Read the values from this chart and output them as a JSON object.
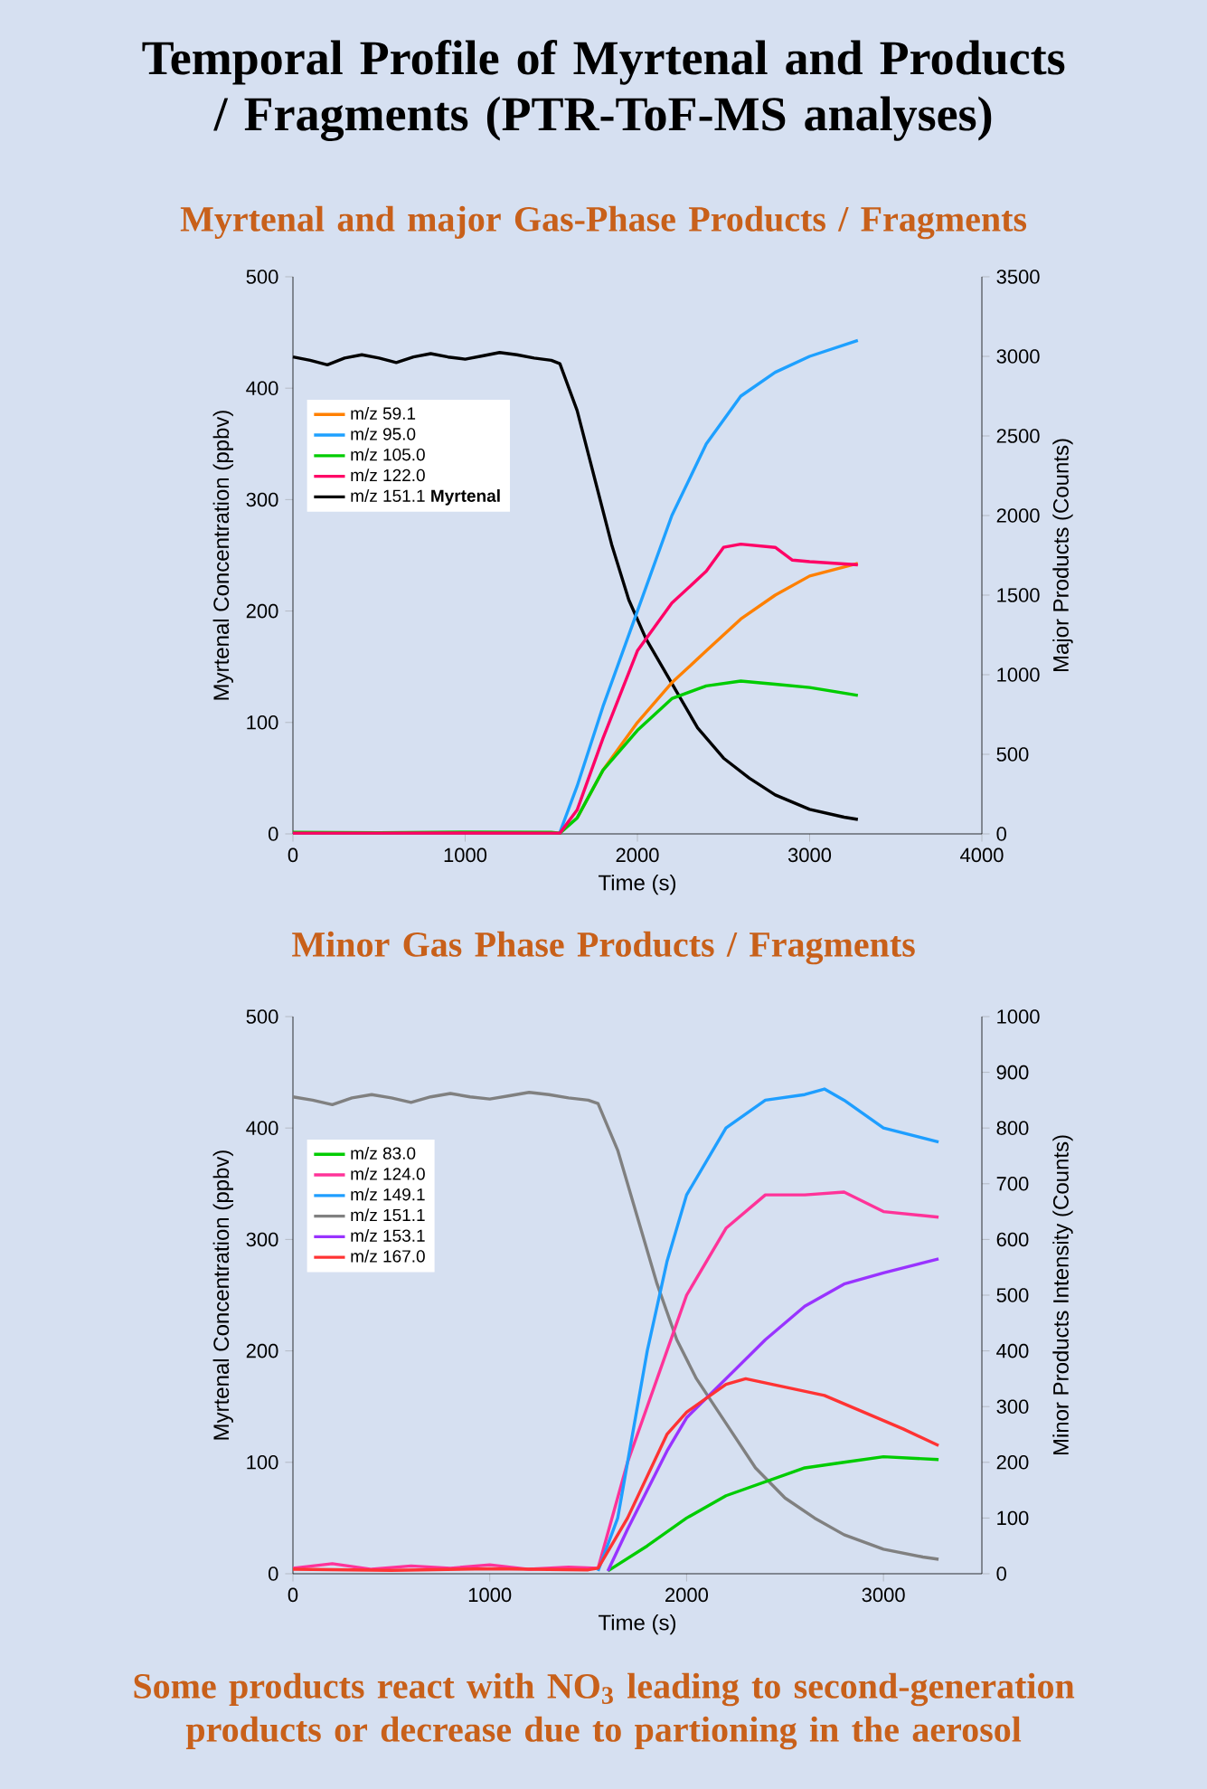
{
  "chart_data": [
    {
      "type": "line",
      "title": "Temporal Profile of Myrtenal and Products / Fragments (PTR-ToF-MS analyses)",
      "subtitle": "Myrtenal and major Gas-Phase Products / Fragments",
      "xlabel": "Time (s)",
      "ylabel": "Myrtenal Concentration (ppbv)",
      "y2label": "Major Products (Counts)",
      "xlim": [
        0,
        4000
      ],
      "xticks": [
        0,
        1000,
        2000,
        3000,
        4000
      ],
      "ylim": [
        0,
        500
      ],
      "yticks": [
        0,
        100,
        200,
        300,
        400,
        500
      ],
      "y2lim": [
        0,
        3500
      ],
      "y2ticks": [
        0,
        500,
        1000,
        1500,
        2000,
        2500,
        3000,
        3500
      ],
      "legend": "top left",
      "series": [
        {
          "name": "m/z 59.1",
          "color": "#ff8000",
          "axis": "y2",
          "x": [
            1650,
            1800,
            2000,
            2200,
            2400,
            2600,
            2800,
            3000,
            3280
          ],
          "values": [
            100,
            400,
            700,
            950,
            1150,
            1350,
            1500,
            1620,
            1700
          ]
        },
        {
          "name": "m/z 95.0",
          "color": "#1ea0ff",
          "axis": "y2",
          "x": [
            1550,
            1650,
            1800,
            2000,
            2200,
            2400,
            2600,
            2800,
            3000,
            3280
          ],
          "values": [
            10,
            300,
            800,
            1400,
            2000,
            2450,
            2750,
            2900,
            3000,
            3100
          ]
        },
        {
          "name": "m/z 105.0",
          "color": "#00cc00",
          "axis": "y2",
          "x": [
            0,
            500,
            1000,
            1500,
            1550,
            1650,
            1800,
            2000,
            2200,
            2400,
            2600,
            2800,
            3000,
            3280
          ],
          "values": [
            10,
            8,
            12,
            10,
            5,
            100,
            400,
            650,
            850,
            930,
            960,
            940,
            920,
            870
          ]
        },
        {
          "name": "m/z 122.0",
          "color": "#ff0066",
          "axis": "y2",
          "x": [
            0,
            500,
            1000,
            1500,
            1550,
            1650,
            1800,
            2000,
            2200,
            2400,
            2500,
            2600,
            2800,
            2900,
            3000,
            3280
          ],
          "values": [
            5,
            5,
            6,
            5,
            5,
            150,
            600,
            1150,
            1450,
            1650,
            1800,
            1820,
            1800,
            1720,
            1710,
            1690
          ]
        },
        {
          "name": "m/z 151.1 **Myrtenal**",
          "color": "#000000",
          "x": [
            0,
            100,
            200,
            300,
            400,
            500,
            600,
            700,
            800,
            900,
            1000,
            1100,
            1200,
            1300,
            1400,
            1500,
            1550,
            1650,
            1750,
            1850,
            1950,
            2050,
            2200,
            2350,
            2500,
            2650,
            2800,
            3000,
            3200,
            3280
          ],
          "values": [
            428,
            425,
            421,
            427,
            430,
            427,
            423,
            428,
            431,
            428,
            426,
            429,
            432,
            430,
            427,
            425,
            422,
            380,
            320,
            260,
            210,
            175,
            135,
            95,
            68,
            50,
            35,
            22,
            15,
            13
          ]
        }
      ]
    },
    {
      "type": "line",
      "title": "Minor Gas Phase Products / Fragments",
      "xlabel": "Time (s)",
      "ylabel": "Myrtenal Concentration (ppbv)",
      "y2label": "Minor Products Intensity (Counts)",
      "xlim": [
        0,
        3500
      ],
      "xticks": [
        0,
        1000,
        2000,
        3000
      ],
      "ylim": [
        0,
        500
      ],
      "yticks": [
        0,
        100,
        200,
        300,
        400,
        500
      ],
      "y2lim": [
        0,
        1000
      ],
      "y2ticks": [
        0,
        100,
        200,
        300,
        400,
        500,
        600,
        700,
        800,
        900,
        1000
      ],
      "legend": "top left",
      "annotations": [
        "Some products react with NO$_{3}$ leading to second-generation products or decrease due to partioning in the aerosol"
      ],
      "series": [
        {
          "name": "m/z 83.0",
          "color": "#00cc00",
          "axis": "y2",
          "x": [
            1600,
            1800,
            2000,
            2200,
            2400,
            2600,
            2800,
            3000,
            3280
          ],
          "values": [
            5,
            50,
            100,
            140,
            165,
            190,
            200,
            210,
            205
          ]
        },
        {
          "name": "m/z 124.0",
          "color": "#ff3399",
          "axis": "y2",
          "x": [
            0,
            200,
            400,
            600,
            800,
            1000,
            1200,
            1400,
            1550,
            1700,
            1900,
            2000,
            2200,
            2400,
            2600,
            2800,
            3000,
            3280
          ],
          "values": [
            10,
            18,
            8,
            14,
            10,
            16,
            8,
            12,
            10,
            200,
            400,
            500,
            620,
            680,
            680,
            685,
            650,
            640
          ]
        },
        {
          "name": "m/z 149.1",
          "color": "#1e9eff",
          "axis": "y2",
          "x": [
            1550,
            1650,
            1800,
            1900,
            2000,
            2200,
            2400,
            2600,
            2700,
            2800,
            3000,
            3280
          ],
          "values": [
            5,
            100,
            400,
            560,
            680,
            800,
            850,
            860,
            870,
            850,
            800,
            775
          ]
        },
        {
          "name": "m/z 151.1",
          "color": "#808080",
          "x": [
            0,
            100,
            200,
            300,
            400,
            500,
            600,
            700,
            800,
            900,
            1000,
            1100,
            1200,
            1300,
            1400,
            1500,
            1550,
            1650,
            1750,
            1850,
            1950,
            2050,
            2200,
            2350,
            2500,
            2650,
            2800,
            3000,
            3200,
            3280
          ],
          "values": [
            428,
            425,
            421,
            427,
            430,
            427,
            423,
            428,
            431,
            428,
            426,
            429,
            432,
            430,
            427,
            425,
            422,
            380,
            320,
            260,
            210,
            175,
            135,
            95,
            68,
            50,
            35,
            22,
            15,
            13
          ]
        },
        {
          "name": "m/z 153.1",
          "color": "#9933ff",
          "axis": "y2",
          "x": [
            1600,
            1700,
            1900,
            2000,
            2200,
            2400,
            2600,
            2800,
            3000,
            3280
          ],
          "values": [
            5,
            80,
            220,
            280,
            350,
            420,
            480,
            520,
            540,
            565
          ]
        },
        {
          "name": "m/z 167.0",
          "color": "#ff3333",
          "axis": "y2",
          "x": [
            0,
            500,
            1000,
            1500,
            1550,
            1700,
            1900,
            2000,
            2200,
            2300,
            2500,
            2700,
            2900,
            3100,
            3280
          ],
          "values": [
            8,
            6,
            9,
            7,
            10,
            100,
            250,
            290,
            340,
            350,
            335,
            320,
            290,
            260,
            230
          ]
        }
      ]
    }
  ]
}
